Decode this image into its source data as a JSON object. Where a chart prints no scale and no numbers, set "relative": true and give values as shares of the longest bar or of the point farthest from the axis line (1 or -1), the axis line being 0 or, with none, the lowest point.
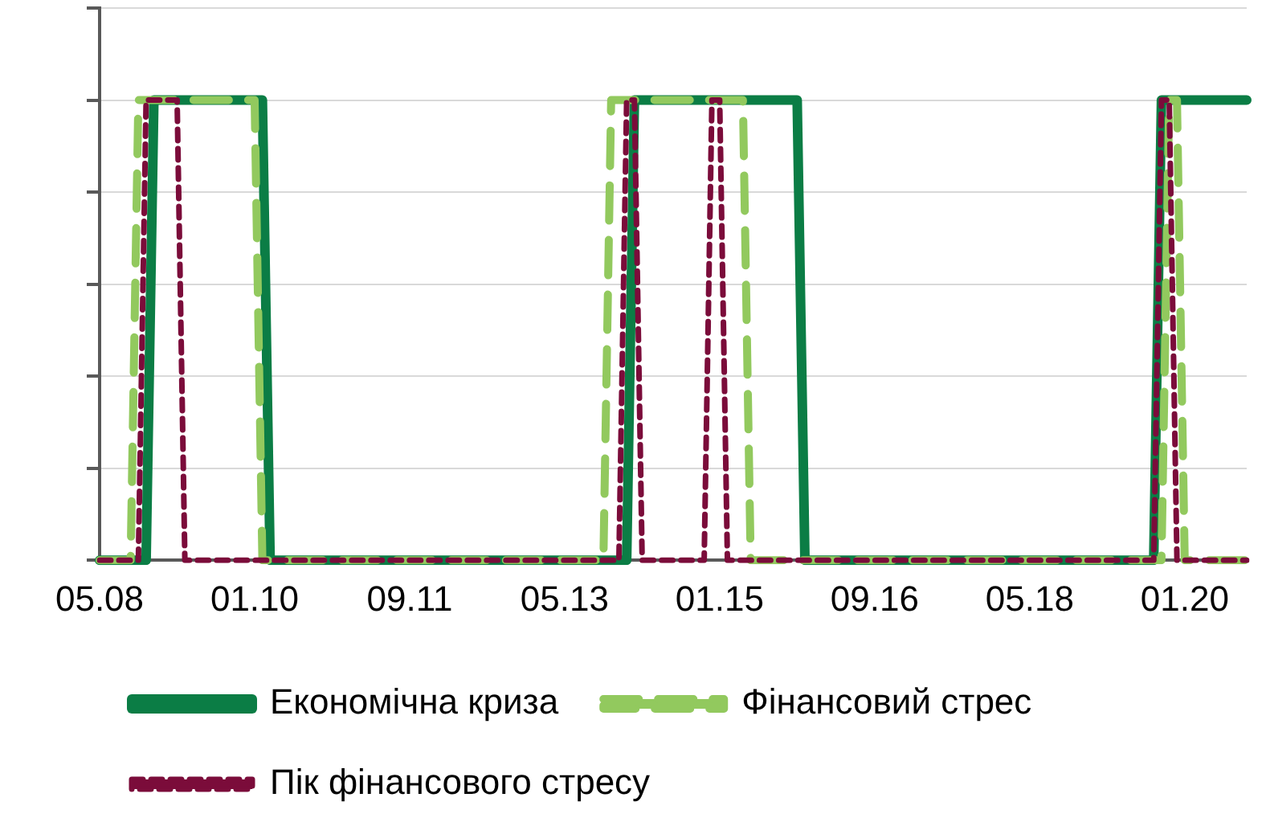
{
  "chart_data": {
    "type": "line",
    "relative": true,
    "grid": "y",
    "legend": "bottom left",
    "categories": [
      "05.08",
      null,
      null,
      null,
      null,
      null,
      null,
      null,
      null,
      null,
      null,
      null,
      null,
      null,
      null,
      null,
      null,
      null,
      null,
      null,
      "01.10",
      null,
      null,
      null,
      null,
      null,
      null,
      null,
      null,
      null,
      null,
      null,
      null,
      null,
      null,
      null,
      null,
      null,
      null,
      null,
      "09.11",
      null,
      null,
      null,
      null,
      null,
      null,
      null,
      null,
      null,
      null,
      null,
      null,
      null,
      null,
      null,
      null,
      null,
      null,
      null,
      "05.13",
      null,
      null,
      null,
      null,
      null,
      null,
      null,
      null,
      null,
      null,
      null,
      null,
      null,
      null,
      null,
      null,
      null,
      null,
      null,
      "01.15",
      null,
      null,
      null,
      null,
      null,
      null,
      null,
      null,
      null,
      null,
      null,
      null,
      null,
      null,
      null,
      null,
      null,
      null,
      null,
      "09.16",
      null,
      null,
      null,
      null,
      null,
      null,
      null,
      null,
      null,
      null,
      null,
      null,
      null,
      null,
      null,
      null,
      null,
      null,
      null,
      "05.18",
      null,
      null,
      null,
      null,
      null,
      null,
      null,
      null,
      null,
      null,
      null,
      null,
      null,
      null,
      null,
      null,
      null,
      null,
      null,
      "01.20",
      null,
      null,
      null,
      null,
      null,
      null,
      null,
      null
    ],
    "series": [
      {
        "name": "Економічна криза",
        "color": "#0b7d45",
        "line_style": "solid",
        "values": [
          0,
          0,
          0,
          0,
          0,
          0,
          0,
          1,
          1,
          1,
          1,
          1,
          1,
          1,
          1,
          1,
          1,
          1,
          1,
          1,
          1,
          1,
          0,
          0,
          0,
          0,
          0,
          0,
          0,
          0,
          0,
          0,
          0,
          0,
          0,
          0,
          0,
          0,
          0,
          0,
          0,
          0,
          0,
          0,
          0,
          0,
          0,
          0,
          0,
          0,
          0,
          0,
          0,
          0,
          0,
          0,
          0,
          0,
          0,
          0,
          0,
          0,
          0,
          0,
          0,
          0,
          0,
          0,
          0,
          1,
          1,
          1,
          1,
          1,
          1,
          1,
          1,
          1,
          1,
          1,
          1,
          1,
          1,
          1,
          1,
          1,
          1,
          1,
          1,
          1,
          1,
          0,
          0,
          0,
          0,
          0,
          0,
          0,
          0,
          0,
          0,
          0,
          0,
          0,
          0,
          0,
          0,
          0,
          0,
          0,
          0,
          0,
          0,
          0,
          0,
          0,
          0,
          0,
          0,
          0,
          0,
          0,
          0,
          0,
          0,
          0,
          0,
          0,
          0,
          0,
          0,
          0,
          0,
          0,
          0,
          0,
          0,
          1,
          1,
          1,
          1,
          1,
          1,
          1,
          1,
          1,
          1,
          1,
          1
        ]
      },
      {
        "name": "Фінансовий стрес",
        "color": "#92c95e",
        "line_style": "dashed",
        "values": [
          0,
          0,
          0,
          0,
          0,
          1,
          1,
          1,
          1,
          1,
          1,
          1,
          1,
          1,
          1,
          1,
          1,
          1,
          1,
          1,
          1,
          0,
          0,
          0,
          0,
          0,
          0,
          0,
          0,
          0,
          0,
          0,
          0,
          0,
          0,
          0,
          0,
          0,
          0,
          0,
          0,
          0,
          0,
          0,
          0,
          0,
          0,
          0,
          0,
          0,
          0,
          0,
          0,
          0,
          0,
          0,
          0,
          0,
          0,
          0,
          0,
          0,
          0,
          0,
          0,
          0,
          1,
          1,
          1,
          1,
          1,
          1,
          1,
          1,
          1,
          1,
          1,
          1,
          1,
          1,
          1,
          1,
          1,
          1,
          0,
          0,
          0,
          0,
          0,
          0,
          0,
          0,
          0,
          0,
          0,
          0,
          0,
          0,
          0,
          0,
          0,
          0,
          0,
          0,
          0,
          0,
          0,
          0,
          0,
          0,
          0,
          0,
          0,
          0,
          0,
          0,
          0,
          0,
          0,
          0,
          0,
          0,
          0,
          0,
          0,
          0,
          0,
          0,
          0,
          0,
          0,
          0,
          0,
          0,
          0,
          0,
          0,
          0,
          1,
          1,
          0,
          0,
          0,
          0,
          0,
          0,
          0,
          0,
          0
        ]
      },
      {
        "name": "Пік фінансового стресу",
        "color": "#7b0c3a",
        "line_style": "dotted",
        "values": [
          0,
          0,
          0,
          0,
          0,
          0,
          1,
          1,
          1,
          1,
          1,
          0,
          0,
          0,
          0,
          0,
          0,
          0,
          0,
          0,
          0,
          0,
          0,
          0,
          0,
          0,
          0,
          0,
          0,
          0,
          0,
          0,
          0,
          0,
          0,
          0,
          0,
          0,
          0,
          0,
          0,
          0,
          0,
          0,
          0,
          0,
          0,
          0,
          0,
          0,
          0,
          0,
          0,
          0,
          0,
          0,
          0,
          0,
          0,
          0,
          0,
          0,
          0,
          0,
          0,
          0,
          0,
          0,
          1,
          1,
          0,
          0,
          0,
          0,
          0,
          0,
          0,
          0,
          0,
          1,
          1,
          0,
          0,
          0,
          0,
          0,
          0,
          0,
          0,
          0,
          0,
          0,
          0,
          0,
          0,
          0,
          0,
          0,
          0,
          0,
          0,
          0,
          0,
          0,
          0,
          0,
          0,
          0,
          0,
          0,
          0,
          0,
          0,
          0,
          0,
          0,
          0,
          0,
          0,
          0,
          0,
          0,
          0,
          0,
          0,
          0,
          0,
          0,
          0,
          0,
          0,
          0,
          0,
          0,
          0,
          0,
          0,
          1,
          1,
          0,
          0,
          0,
          0,
          0,
          0,
          0,
          0,
          0,
          0
        ]
      }
    ]
  }
}
